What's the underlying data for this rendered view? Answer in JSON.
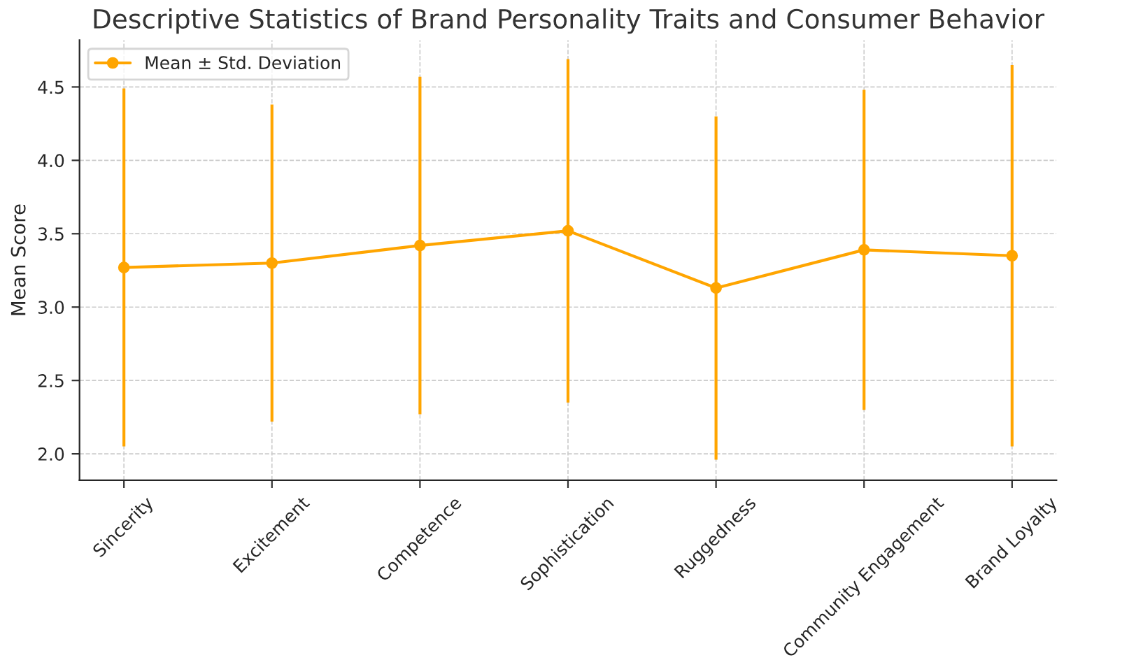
{
  "chart_data": {
    "type": "line",
    "title": "Descriptive Statistics of Brand Personality Traits and Consumer Behavior",
    "ylabel": "Mean Score",
    "categories": [
      "Sincerity",
      "Excitement",
      "Competence",
      "Sophistication",
      "Ruggedness",
      "Community Engagement",
      "Brand Loyalty"
    ],
    "series": [
      {
        "name": "Mean ± Std. Deviation",
        "color": "#ffa500",
        "values": [
          3.27,
          3.3,
          3.42,
          3.52,
          3.13,
          3.39,
          3.35
        ],
        "errors": [
          1.22,
          1.08,
          1.15,
          1.17,
          1.17,
          1.09,
          1.3
        ]
      }
    ],
    "ylim": [
      1.82,
      4.82
    ],
    "yticks": [
      {
        "value": 2,
        "label": "2.0"
      },
      2.5,
      {
        "value": 3,
        "label": "3.0"
      },
      3.5,
      {
        "value": 4,
        "label": "4.0"
      },
      4.5
    ],
    "grid": true,
    "legend": "top left",
    "marker": "circle",
    "line_style": "solid"
  }
}
